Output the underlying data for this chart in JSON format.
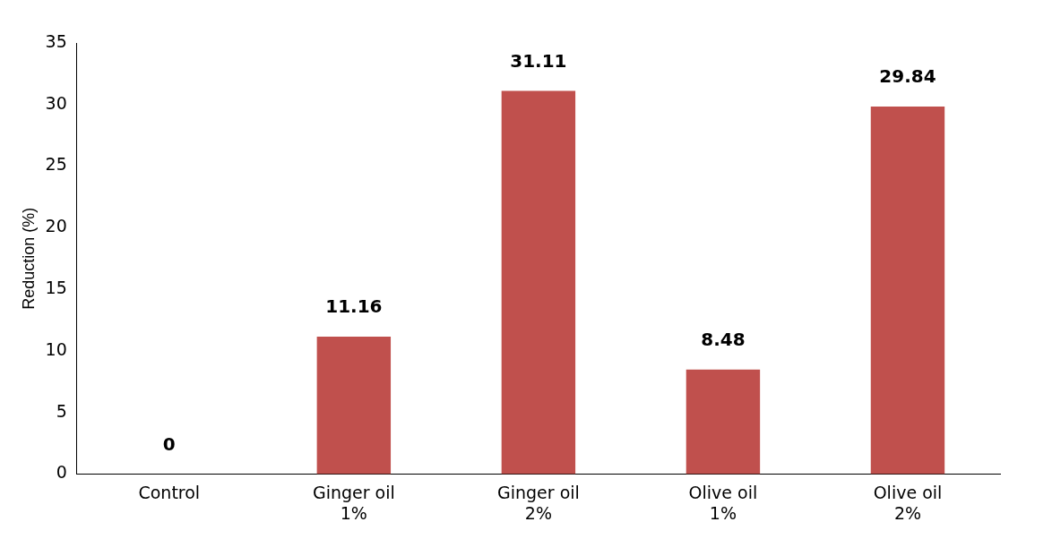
{
  "chart_data": {
    "type": "bar",
    "ylabel": "Reduction (%)",
    "categories": [
      "Control",
      "Ginger oil 1%",
      "Ginger oil 2%",
      "Olive oil 1%",
      "Olive oil 2%"
    ],
    "values": [
      0,
      11.16,
      31.11,
      8.48,
      29.84
    ],
    "color": "#c0504d",
    "ylim": [
      0,
      35
    ],
    "yticks": [
      0,
      5,
      10,
      15,
      20,
      25,
      30,
      35
    ],
    "grid": false,
    "legend": false,
    "data_labels": true
  }
}
